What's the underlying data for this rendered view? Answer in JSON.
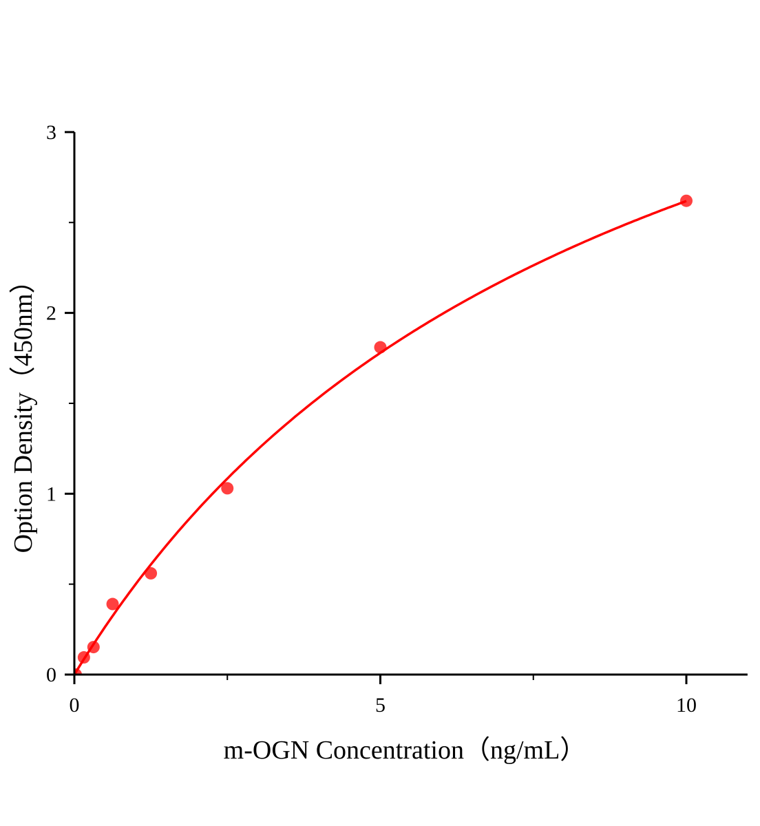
{
  "chart_data": {
    "type": "scatter",
    "title": "",
    "xlabel": "m-OGN Concentration（ng/mL）",
    "ylabel": "Option Density（450nm）",
    "xlim": [
      0,
      11
    ],
    "ylim": [
      0,
      3
    ],
    "x_ticks": [
      "0",
      "5",
      "10"
    ],
    "y_ticks": [
      "0",
      "1",
      "2",
      "3"
    ],
    "grid": false,
    "legend": "none",
    "color": "#ff0000",
    "series": [
      {
        "x": [
          0,
          0.156,
          0.313,
          0.625,
          1.25,
          2.5,
          5,
          10
        ],
        "y": [
          0.0,
          0.095,
          0.152,
          0.39,
          0.56,
          1.03,
          1.81,
          2.62
        ],
        "fit_curve": true
      }
    ]
  }
}
